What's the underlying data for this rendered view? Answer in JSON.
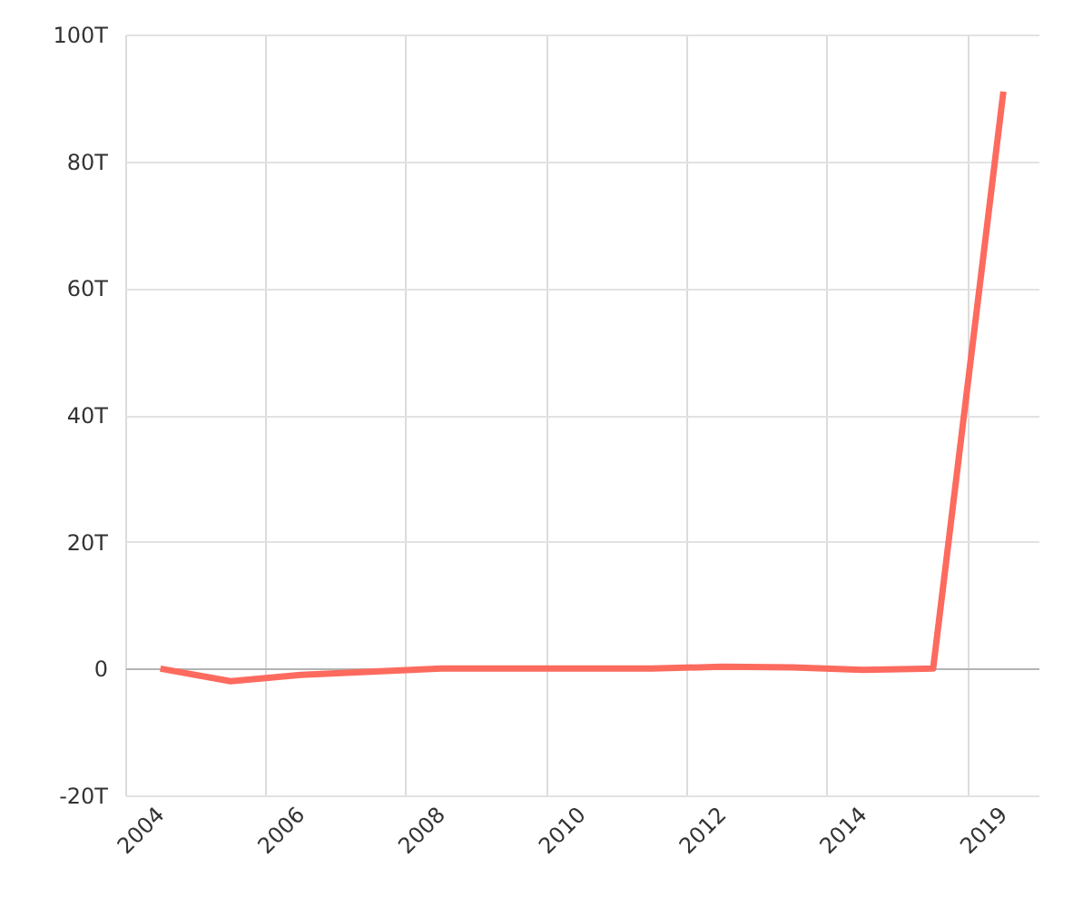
{
  "chart_data": {
    "type": "line",
    "categories": [
      "2004",
      null,
      "2006",
      null,
      "2008",
      null,
      "2010",
      null,
      "2012",
      null,
      "2014",
      null,
      "2019"
    ],
    "series": [
      {
        "color": "#fd6a5e",
        "values": [
          0,
          -2,
          -1,
          -0.5,
          0,
          0,
          0,
          0,
          0.3,
          0.2,
          -0.2,
          0,
          91
        ]
      }
    ],
    "ylim": [
      -20,
      100
    ],
    "yticks": [
      {
        "value": -20,
        "label": "-20T"
      },
      0,
      {
        "value": 20,
        "label": "20T"
      },
      {
        "value": 40,
        "label": "40T"
      },
      {
        "value": 60,
        "label": "60T"
      },
      {
        "value": 80,
        "label": "80T"
      },
      {
        "value": 100,
        "label": "100T"
      }
    ],
    "grid": true,
    "line_style": "solid"
  }
}
